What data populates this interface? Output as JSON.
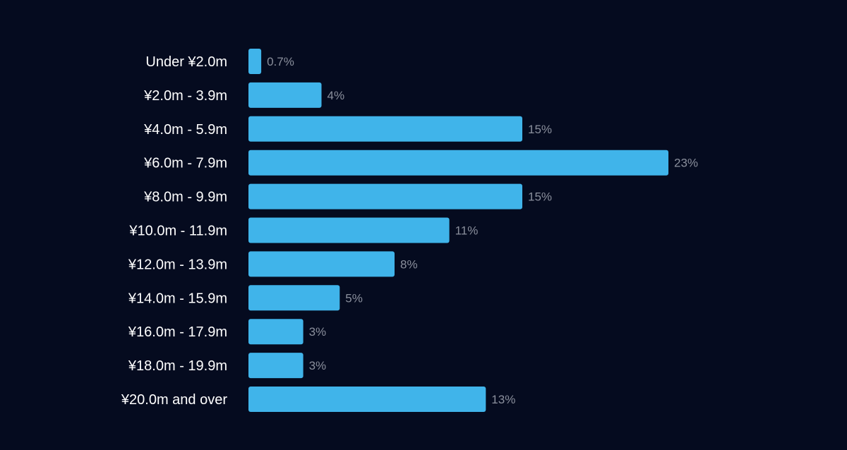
{
  "colors": {
    "background": "#050b1f",
    "bar": "#40b4ea",
    "category_text": "#ffffff",
    "value_text": "#8a8f9c"
  },
  "chart_data": {
    "type": "bar",
    "orientation": "horizontal",
    "title": "",
    "xlabel": "",
    "ylabel": "",
    "grid": false,
    "legend": "none",
    "xlim": [
      0,
      23
    ],
    "categories": [
      "Under ¥2.0m",
      "¥2.0m - 3.9m",
      "¥4.0m - 5.9m",
      "¥6.0m - 7.9m",
      "¥8.0m - 9.9m",
      "¥10.0m - 11.9m",
      "¥12.0m - 13.9m",
      "¥14.0m - 15.9m",
      "¥16.0m - 17.9m",
      "¥18.0m - 19.9m",
      "¥20.0m and over"
    ],
    "values": [
      0.7,
      4,
      15,
      23,
      15,
      11,
      8,
      5,
      3,
      3,
      13
    ],
    "value_labels": [
      "0.7%",
      "4%",
      "15%",
      "23%",
      "15%",
      "11%",
      "8%",
      "5%",
      "3%",
      "3%",
      "13%"
    ]
  }
}
